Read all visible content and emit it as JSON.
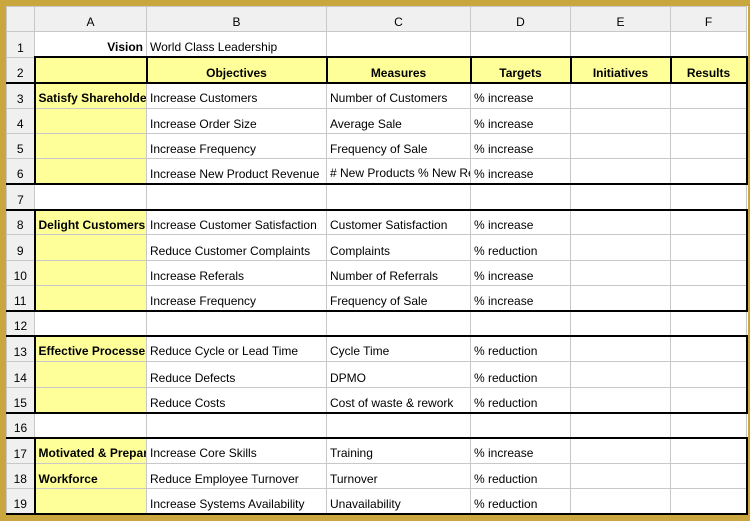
{
  "colors": {
    "frame": "#c9a73e",
    "highlight": "#ffff99",
    "grid": "#c8c8c8",
    "border": "#000000",
    "header_bg": "#f0f0f0"
  },
  "columns": [
    "A",
    "B",
    "C",
    "D",
    "E",
    "F"
  ],
  "row_numbers": [
    1,
    2,
    3,
    4,
    5,
    6,
    7,
    8,
    9,
    10,
    11,
    12,
    13,
    14,
    15,
    16,
    17,
    18,
    19
  ],
  "r1": {
    "A": "Vision",
    "B": "World Class Leadership"
  },
  "r2": {
    "A": "",
    "B": "Objectives",
    "C": "Measures",
    "D": "Targets",
    "E": "Initiatives",
    "F": "Results"
  },
  "r3": {
    "A": "Satisfy Shareholders",
    "B": "Increase Customers",
    "C": "Number of Customers",
    "D": "% increase"
  },
  "r4": {
    "B": "Increase Order Size",
    "C": "Average Sale",
    "D": "% increase"
  },
  "r5": {
    "B": "Increase Frequency",
    "C": "Frequency of Sale",
    "D": "% increase"
  },
  "r6": {
    "B": "Increase New Product Revenue",
    "C": "# New Products\n% New Revenue",
    "D": "% increase"
  },
  "r8": {
    "A": "Delight Customers",
    "B": "Increase Customer Satisfaction",
    "C": "Customer Satisfaction",
    "D": "% increase"
  },
  "r9": {
    "B": "Reduce Customer Complaints",
    "C": "Complaints",
    "D": "% reduction"
  },
  "r10": {
    "B": "Increase Referals",
    "C": "Number of Referrals",
    "D": "% increase"
  },
  "r11": {
    "B": "Increase Frequency",
    "C": "Frequency of Sale",
    "D": "% increase"
  },
  "r13": {
    "A": "Effective Processes",
    "B": "Reduce Cycle or Lead Time",
    "C": "Cycle Time",
    "D": "% reduction"
  },
  "r14": {
    "B": "Reduce Defects",
    "C": "DPMO",
    "D": "% reduction"
  },
  "r15": {
    "B": "Reduce Costs",
    "C": "Cost of waste & rework",
    "D": "% reduction"
  },
  "r17": {
    "A": "Motivated & Prepared",
    "B": "Increase Core Skills",
    "C": "Training",
    "D": "% increase"
  },
  "r18": {
    "A": "Workforce",
    "B": "Reduce Employee Turnover",
    "C": "Turnover",
    "D": "% reduction"
  },
  "r19": {
    "B": "Increase Systems Availability",
    "C": "Unavailability",
    "D": "% reduction"
  }
}
